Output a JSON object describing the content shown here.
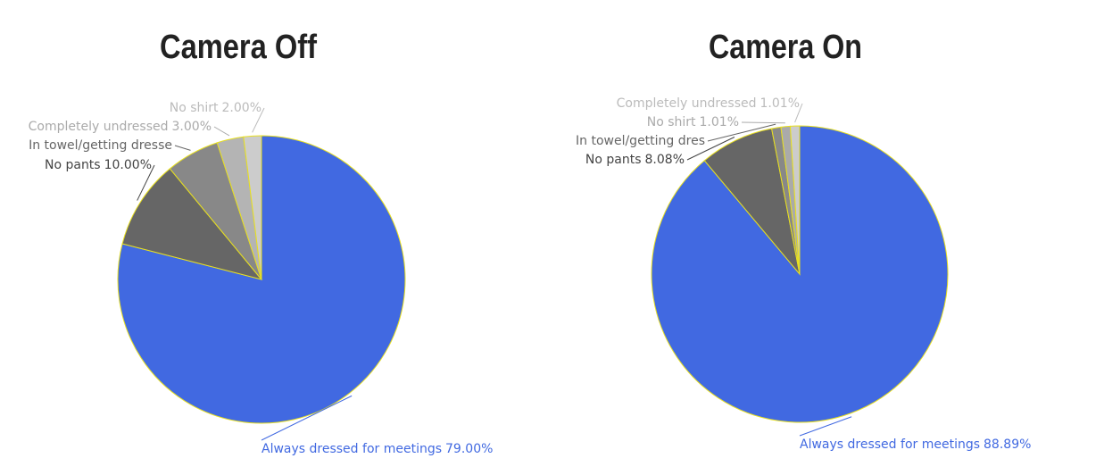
{
  "chart_data": [
    {
      "type": "pie",
      "title": "Camera Off",
      "categories": [
        "Always dressed for meetings",
        "No pants",
        "In towel/getting dresse",
        "Completely undressed",
        "No shirt"
      ],
      "values": [
        79.0,
        10.0,
        6.0,
        3.0,
        2.0
      ],
      "value_labels": [
        "79.00%",
        "10.00%",
        null,
        "3.00%",
        "2.00%"
      ],
      "colors": [
        "#4169e1",
        "#666666",
        "#888888",
        "#b4b4b4",
        "#cccccc"
      ]
    },
    {
      "type": "pie",
      "title": "Camera On",
      "categories": [
        "Always dressed for meetings",
        "No pants",
        "In towel/getting dres",
        "No shirt",
        "Completely undressed"
      ],
      "values": [
        88.89,
        8.08,
        1.01,
        1.01,
        1.01
      ],
      "value_labels": [
        "88.89%",
        "8.08%",
        null,
        "1.01%",
        "1.01%"
      ],
      "colors": [
        "#4169e1",
        "#666666",
        "#888888",
        "#aaaaaa",
        "#cccccc"
      ]
    }
  ]
}
